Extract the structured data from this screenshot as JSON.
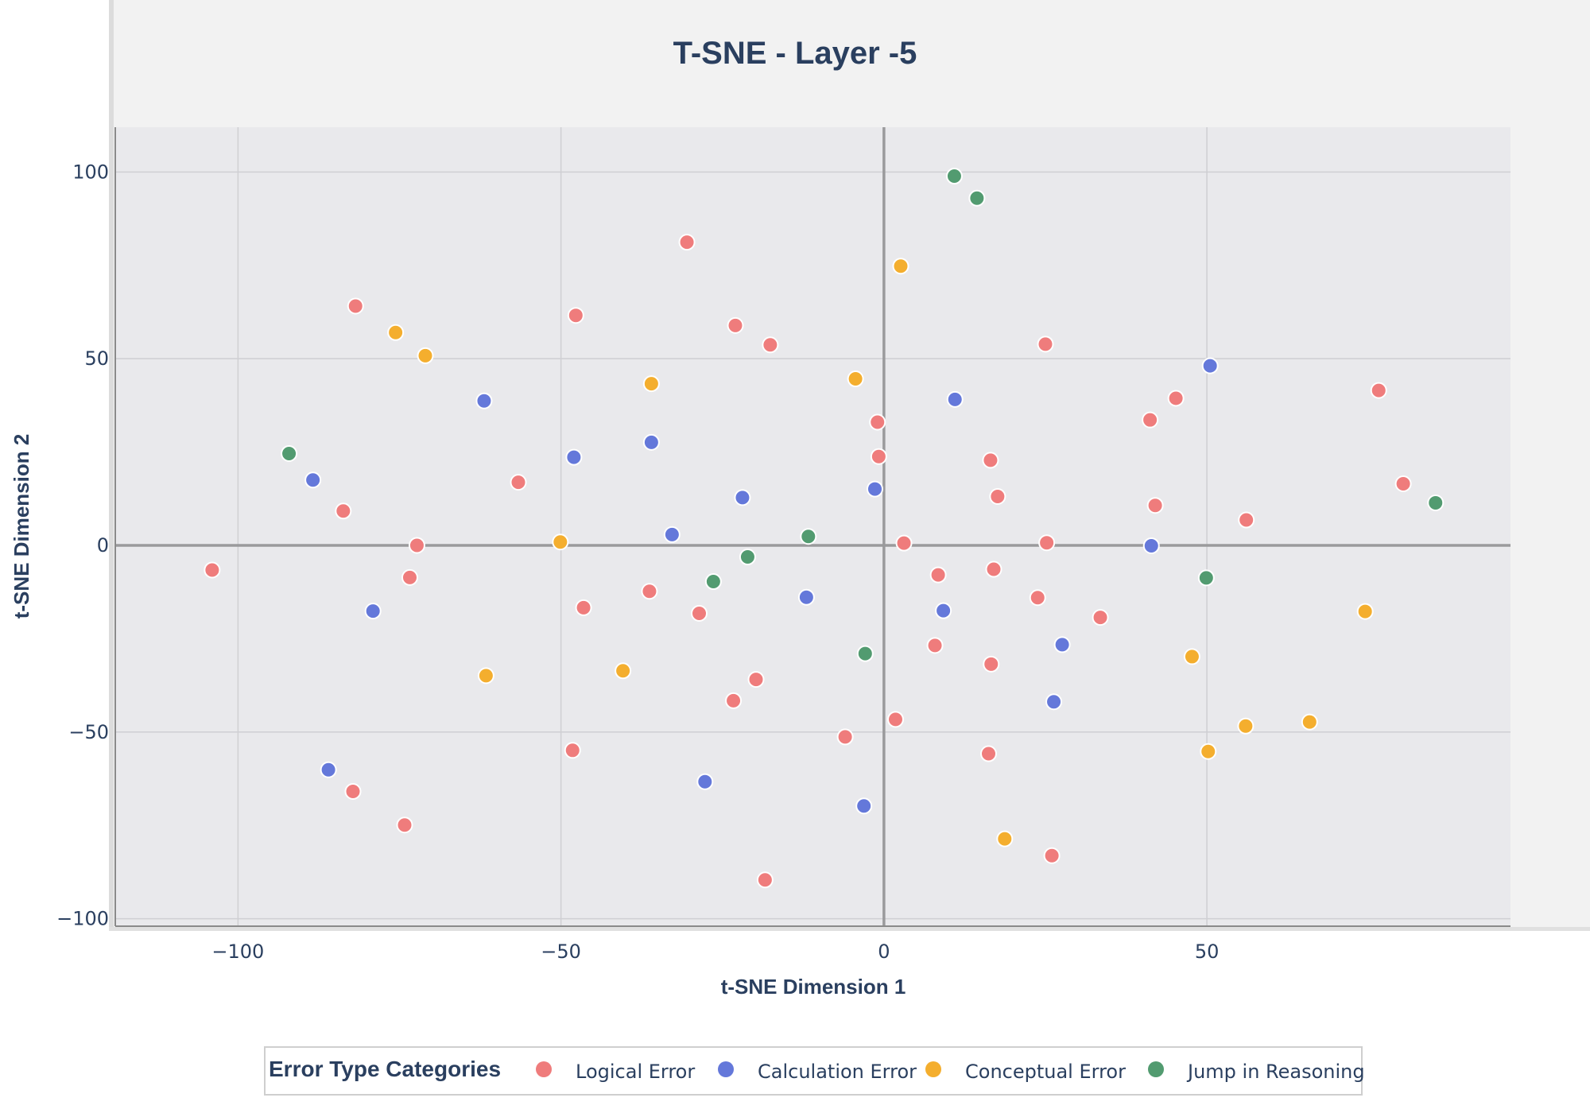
{
  "chart_data": {
    "type": "scatter",
    "title": "T-SNE - Layer -5",
    "xlabel": "t-SNE Dimension 1",
    "ylabel": "t-SNE Dimension 2",
    "xlim": [
      -119,
      97
    ],
    "ylim": [
      -102,
      112
    ],
    "xticks": [
      -100,
      -50,
      0,
      50
    ],
    "yticks": [
      -100,
      -50,
      0,
      50,
      100
    ],
    "grid": true,
    "legend": {
      "title": "Error Type Categories",
      "position": "bottom-center",
      "orientation": "horizontal"
    },
    "series": [
      {
        "name": "Logical Error",
        "color": "#EF7C7C",
        "points": [
          [
            -30.5,
            81.2
          ],
          [
            -81.8,
            64.1
          ],
          [
            -47.7,
            61.6
          ],
          [
            -23,
            58.9
          ],
          [
            -17.6,
            53.7
          ],
          [
            25,
            53.9
          ],
          [
            -1,
            33
          ],
          [
            -0.8,
            23.8
          ],
          [
            16.5,
            22.8
          ],
          [
            17.6,
            13.1
          ],
          [
            -56.6,
            16.9
          ],
          [
            -83.7,
            9.2
          ],
          [
            -72.3,
            0
          ],
          [
            3.1,
            0.6
          ],
          [
            25.2,
            0.7
          ],
          [
            -104,
            -6.6
          ],
          [
            -73.4,
            -8.6
          ],
          [
            8.4,
            -7.9
          ],
          [
            17,
            -6.4
          ],
          [
            -46.5,
            -16.7
          ],
          [
            -36.3,
            -12.3
          ],
          [
            -28.6,
            -18.2
          ],
          [
            23.8,
            -14
          ],
          [
            33.5,
            -19.3
          ],
          [
            7.9,
            -26.8
          ],
          [
            16.6,
            -31.8
          ],
          [
            -19.8,
            -35.9
          ],
          [
            -23.3,
            -41.6
          ],
          [
            1.8,
            -46.6
          ],
          [
            -6,
            -51.3
          ],
          [
            -48.2,
            -54.9
          ],
          [
            16.2,
            -55.8
          ],
          [
            -82.2,
            -65.9
          ],
          [
            -74.2,
            -74.9
          ],
          [
            -18.4,
            -89.6
          ],
          [
            26,
            -83.1
          ],
          [
            41.2,
            33.6
          ],
          [
            45.2,
            39.4
          ],
          [
            42,
            10.7
          ],
          [
            56.1,
            6.8
          ],
          [
            76.6,
            41.5
          ],
          [
            80.4,
            16.5
          ]
        ]
      },
      {
        "name": "Calculation Error",
        "color": "#6478DA",
        "points": [
          [
            -61.9,
            38.7
          ],
          [
            -48,
            23.6
          ],
          [
            -36,
            27.6
          ],
          [
            -21.9,
            12.8
          ],
          [
            -32.8,
            2.9
          ],
          [
            -88.4,
            17.5
          ],
          [
            -79.1,
            -17.6
          ],
          [
            -12,
            -13.9
          ],
          [
            9.2,
            -17.5
          ],
          [
            11,
            39.1
          ],
          [
            -1.4,
            15.1
          ],
          [
            27.6,
            -26.6
          ],
          [
            26.3,
            -41.9
          ],
          [
            -27.7,
            -63.3
          ],
          [
            -3.1,
            -69.8
          ],
          [
            -86,
            -60.1
          ],
          [
            50.5,
            48.1
          ],
          [
            41.4,
            -0.1
          ]
        ]
      },
      {
        "name": "Conceptual Error",
        "color": "#F4AE2E",
        "points": [
          [
            -75.6,
            57
          ],
          [
            -71,
            50.8
          ],
          [
            -36,
            43.3
          ],
          [
            -50.1,
            0.9
          ],
          [
            -4.4,
            44.6
          ],
          [
            2.6,
            74.8
          ],
          [
            -61.6,
            -34.9
          ],
          [
            -40.4,
            -33.6
          ],
          [
            47.7,
            -29.8
          ],
          [
            18.7,
            -78.6
          ],
          [
            50.2,
            -55.2
          ],
          [
            56,
            -48.4
          ],
          [
            65.9,
            -47.3
          ],
          [
            74.5,
            -17.7
          ]
        ]
      },
      {
        "name": "Jump in Reasoning",
        "color": "#529B70",
        "points": [
          [
            10.9,
            98.9
          ],
          [
            14.4,
            93
          ],
          [
            -92.1,
            24.6
          ],
          [
            -11.7,
            2.4
          ],
          [
            -21.1,
            -3.1
          ],
          [
            -26.4,
            -9.7
          ],
          [
            -2.9,
            -29
          ],
          [
            49.9,
            -8.7
          ],
          [
            85.4,
            11.4
          ]
        ]
      }
    ]
  }
}
